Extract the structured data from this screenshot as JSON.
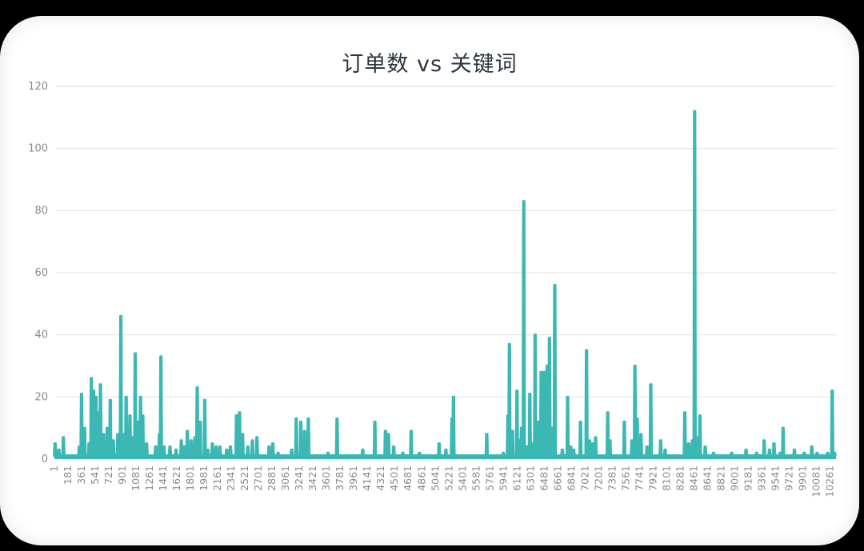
{
  "chart_data": {
    "type": "line",
    "title": "订单数 vs 关键词",
    "xlabel": "",
    "ylabel": "",
    "ylim": [
      0,
      120
    ],
    "grid": true,
    "legend": null,
    "color": "#3bb8b4",
    "y_ticks": [
      0,
      20,
      40,
      60,
      80,
      100,
      120
    ],
    "x_ticks": [
      "1",
      "181",
      "361",
      "541",
      "721",
      "901",
      "1081",
      "1261",
      "1441",
      "1621",
      "1801",
      "1981",
      "2161",
      "2341",
      "2521",
      "2701",
      "2881",
      "3061",
      "3241",
      "3421",
      "3601",
      "3781",
      "3961",
      "4141",
      "4321",
      "4501",
      "4681",
      "4861",
      "5041",
      "5221",
      "5401",
      "5581",
      "5761",
      "5941",
      "6121",
      "6301",
      "6481",
      "6661",
      "6841",
      "7021",
      "7201",
      "7381",
      "7561",
      "7741",
      "7921",
      "8101",
      "8281",
      "8461",
      "8641",
      "8821",
      "9001",
      "9181",
      "9361",
      "9541",
      "9721",
      "9901",
      "10081",
      "10261"
    ],
    "x_range": [
      1,
      10340
    ],
    "baseline": 1,
    "peaks": [
      {
        "x": 10,
        "y": 5
      },
      {
        "x": 60,
        "y": 3
      },
      {
        "x": 120,
        "y": 7
      },
      {
        "x": 330,
        "y": 4
      },
      {
        "x": 360,
        "y": 21
      },
      {
        "x": 400,
        "y": 10
      },
      {
        "x": 460,
        "y": 5
      },
      {
        "x": 490,
        "y": 26
      },
      {
        "x": 520,
        "y": 22
      },
      {
        "x": 550,
        "y": 20
      },
      {
        "x": 580,
        "y": 15
      },
      {
        "x": 610,
        "y": 24
      },
      {
        "x": 650,
        "y": 8
      },
      {
        "x": 700,
        "y": 10
      },
      {
        "x": 740,
        "y": 19
      },
      {
        "x": 780,
        "y": 6
      },
      {
        "x": 840,
        "y": 8
      },
      {
        "x": 880,
        "y": 46
      },
      {
        "x": 920,
        "y": 8
      },
      {
        "x": 950,
        "y": 20
      },
      {
        "x": 1000,
        "y": 14
      },
      {
        "x": 1040,
        "y": 7
      },
      {
        "x": 1070,
        "y": 34
      },
      {
        "x": 1100,
        "y": 12
      },
      {
        "x": 1140,
        "y": 20
      },
      {
        "x": 1170,
        "y": 14
      },
      {
        "x": 1220,
        "y": 5
      },
      {
        "x": 1340,
        "y": 4
      },
      {
        "x": 1390,
        "y": 8
      },
      {
        "x": 1410,
        "y": 33
      },
      {
        "x": 1450,
        "y": 4
      },
      {
        "x": 1530,
        "y": 4
      },
      {
        "x": 1610,
        "y": 3
      },
      {
        "x": 1680,
        "y": 6
      },
      {
        "x": 1720,
        "y": 4
      },
      {
        "x": 1760,
        "y": 9
      },
      {
        "x": 1810,
        "y": 6
      },
      {
        "x": 1860,
        "y": 7
      },
      {
        "x": 1890,
        "y": 23
      },
      {
        "x": 1930,
        "y": 12
      },
      {
        "x": 1990,
        "y": 19
      },
      {
        "x": 2030,
        "y": 3
      },
      {
        "x": 2090,
        "y": 5
      },
      {
        "x": 2140,
        "y": 4
      },
      {
        "x": 2190,
        "y": 4
      },
      {
        "x": 2280,
        "y": 3
      },
      {
        "x": 2330,
        "y": 4
      },
      {
        "x": 2410,
        "y": 14
      },
      {
        "x": 2450,
        "y": 15
      },
      {
        "x": 2490,
        "y": 8
      },
      {
        "x": 2560,
        "y": 4
      },
      {
        "x": 2620,
        "y": 6
      },
      {
        "x": 2680,
        "y": 7
      },
      {
        "x": 2840,
        "y": 4
      },
      {
        "x": 2890,
        "y": 5
      },
      {
        "x": 2960,
        "y": 2
      },
      {
        "x": 3140,
        "y": 3
      },
      {
        "x": 3200,
        "y": 13
      },
      {
        "x": 3260,
        "y": 12
      },
      {
        "x": 3310,
        "y": 9
      },
      {
        "x": 3360,
        "y": 13
      },
      {
        "x": 3620,
        "y": 2
      },
      {
        "x": 3740,
        "y": 13
      },
      {
        "x": 4080,
        "y": 3
      },
      {
        "x": 4240,
        "y": 12
      },
      {
        "x": 4380,
        "y": 9
      },
      {
        "x": 4420,
        "y": 8
      },
      {
        "x": 4490,
        "y": 4
      },
      {
        "x": 4610,
        "y": 2
      },
      {
        "x": 4720,
        "y": 9
      },
      {
        "x": 4830,
        "y": 2
      },
      {
        "x": 5090,
        "y": 5
      },
      {
        "x": 5180,
        "y": 3
      },
      {
        "x": 5260,
        "y": 13
      },
      {
        "x": 5280,
        "y": 20
      },
      {
        "x": 5720,
        "y": 8
      },
      {
        "x": 5940,
        "y": 2
      },
      {
        "x": 6000,
        "y": 14
      },
      {
        "x": 6020,
        "y": 37
      },
      {
        "x": 6060,
        "y": 9
      },
      {
        "x": 6120,
        "y": 22
      },
      {
        "x": 6150,
        "y": 6
      },
      {
        "x": 6180,
        "y": 10
      },
      {
        "x": 6210,
        "y": 83
      },
      {
        "x": 6250,
        "y": 4
      },
      {
        "x": 6290,
        "y": 21
      },
      {
        "x": 6330,
        "y": 5
      },
      {
        "x": 6360,
        "y": 40
      },
      {
        "x": 6400,
        "y": 12
      },
      {
        "x": 6440,
        "y": 28
      },
      {
        "x": 6480,
        "y": 28
      },
      {
        "x": 6520,
        "y": 30
      },
      {
        "x": 6550,
        "y": 39
      },
      {
        "x": 6590,
        "y": 10
      },
      {
        "x": 6620,
        "y": 56
      },
      {
        "x": 6720,
        "y": 3
      },
      {
        "x": 6790,
        "y": 20
      },
      {
        "x": 6830,
        "y": 4
      },
      {
        "x": 6870,
        "y": 3
      },
      {
        "x": 6960,
        "y": 12
      },
      {
        "x": 7040,
        "y": 35
      },
      {
        "x": 7080,
        "y": 6
      },
      {
        "x": 7120,
        "y": 5
      },
      {
        "x": 7160,
        "y": 7
      },
      {
        "x": 7320,
        "y": 15
      },
      {
        "x": 7350,
        "y": 6
      },
      {
        "x": 7540,
        "y": 12
      },
      {
        "x": 7640,
        "y": 6
      },
      {
        "x": 7680,
        "y": 30
      },
      {
        "x": 7710,
        "y": 13
      },
      {
        "x": 7760,
        "y": 8
      },
      {
        "x": 7840,
        "y": 4
      },
      {
        "x": 7890,
        "y": 24
      },
      {
        "x": 8020,
        "y": 6
      },
      {
        "x": 8080,
        "y": 3
      },
      {
        "x": 8340,
        "y": 15
      },
      {
        "x": 8390,
        "y": 5
      },
      {
        "x": 8440,
        "y": 6
      },
      {
        "x": 8470,
        "y": 112
      },
      {
        "x": 8510,
        "y": 7
      },
      {
        "x": 8540,
        "y": 14
      },
      {
        "x": 8610,
        "y": 4
      },
      {
        "x": 8720,
        "y": 2
      },
      {
        "x": 8960,
        "y": 2
      },
      {
        "x": 9150,
        "y": 3
      },
      {
        "x": 9290,
        "y": 2
      },
      {
        "x": 9390,
        "y": 6
      },
      {
        "x": 9460,
        "y": 3
      },
      {
        "x": 9520,
        "y": 5
      },
      {
        "x": 9600,
        "y": 2
      },
      {
        "x": 9640,
        "y": 10
      },
      {
        "x": 9790,
        "y": 3
      },
      {
        "x": 9920,
        "y": 2
      },
      {
        "x": 10020,
        "y": 4
      },
      {
        "x": 10090,
        "y": 2
      },
      {
        "x": 10230,
        "y": 2
      },
      {
        "x": 10290,
        "y": 22
      },
      {
        "x": 10320,
        "y": 2
      }
    ]
  }
}
